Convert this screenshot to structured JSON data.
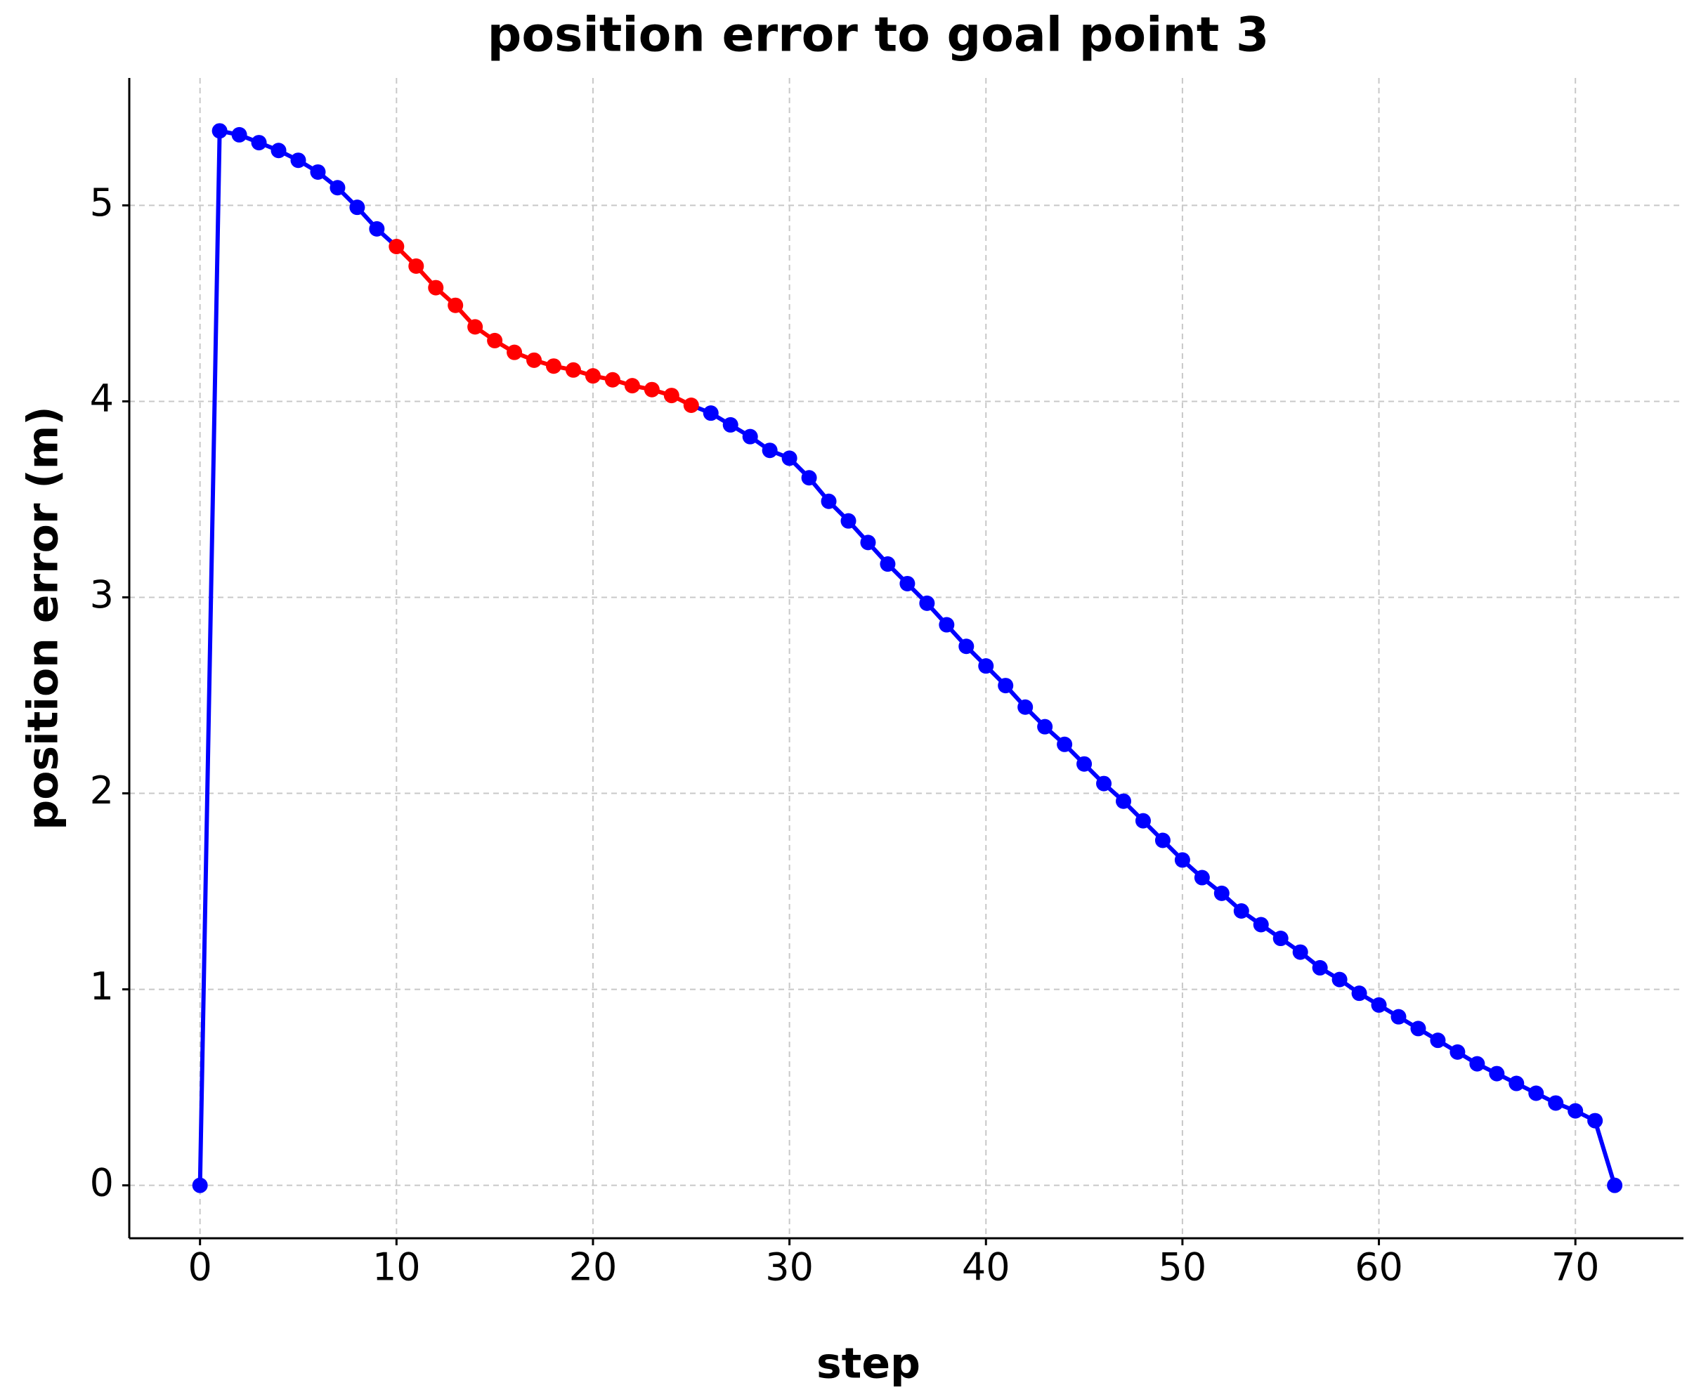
{
  "chart_data": {
    "type": "line",
    "title": "position error to goal point 3",
    "x_label": "step",
    "y_label": "position error (m)",
    "x": [
      0,
      1,
      2,
      3,
      4,
      5,
      6,
      7,
      8,
      9,
      10,
      11,
      12,
      13,
      14,
      15,
      16,
      17,
      18,
      19,
      20,
      21,
      22,
      23,
      24,
      25,
      26,
      27,
      28,
      29,
      30,
      31,
      32,
      33,
      34,
      35,
      36,
      37,
      38,
      39,
      40,
      41,
      42,
      43,
      44,
      45,
      46,
      47,
      48,
      49,
      50,
      51,
      52,
      53,
      54,
      55,
      56,
      57,
      58,
      59,
      60,
      61,
      62,
      63,
      64,
      65,
      66,
      67,
      68,
      69,
      70,
      71,
      72
    ],
    "series": [
      {
        "color": "#0000ff",
        "values": [
          0,
          5.38,
          5.36,
          5.32,
          5.28,
          5.23,
          5.17,
          5.09,
          4.99,
          4.88,
          null,
          null,
          null,
          null,
          null,
          null,
          null,
          null,
          null,
          null,
          null,
          null,
          null,
          null,
          null,
          null,
          3.94,
          3.88,
          3.82,
          3.75,
          3.71,
          3.61,
          3.49,
          3.39,
          3.28,
          3.17,
          3.07,
          2.97,
          2.86,
          2.75,
          2.65,
          2.55,
          2.44,
          2.34,
          2.25,
          2.15,
          2.05,
          1.96,
          1.86,
          1.76,
          1.66,
          1.57,
          1.49,
          1.4,
          1.33,
          1.26,
          1.19,
          1.11,
          1.05,
          0.98,
          0.92,
          0.86,
          0.8,
          0.74,
          0.68,
          0.62,
          0.57,
          0.52,
          0.47,
          0.42,
          0.38,
          0.33,
          0
        ]
      },
      {
        "color": "#ff0000",
        "values": [
          null,
          null,
          null,
          null,
          null,
          null,
          null,
          null,
          null,
          null,
          4.79,
          4.69,
          4.58,
          4.49,
          4.38,
          4.31,
          4.25,
          4.21,
          4.18,
          4.16,
          4.13,
          4.11,
          4.08,
          4.06,
          4.03,
          3.98,
          null,
          null,
          null,
          null,
          null,
          null,
          null,
          null,
          null,
          null,
          null,
          null,
          null,
          null,
          null,
          null,
          null,
          null,
          null,
          null,
          null,
          null,
          null,
          null,
          null,
          null,
          null,
          null,
          null,
          null,
          null,
          null,
          null,
          null,
          null,
          null,
          null,
          null,
          null,
          null,
          null,
          null,
          null,
          null,
          null,
          null,
          null
        ]
      }
    ],
    "xlim": [
      -3.6,
      75.5
    ],
    "ylim": [
      -0.27,
      5.65
    ],
    "xticks": [
      0,
      10,
      20,
      30,
      40,
      50,
      60,
      70
    ],
    "yticks": [
      0,
      1,
      2,
      3,
      4,
      5
    ],
    "grid": true
  }
}
